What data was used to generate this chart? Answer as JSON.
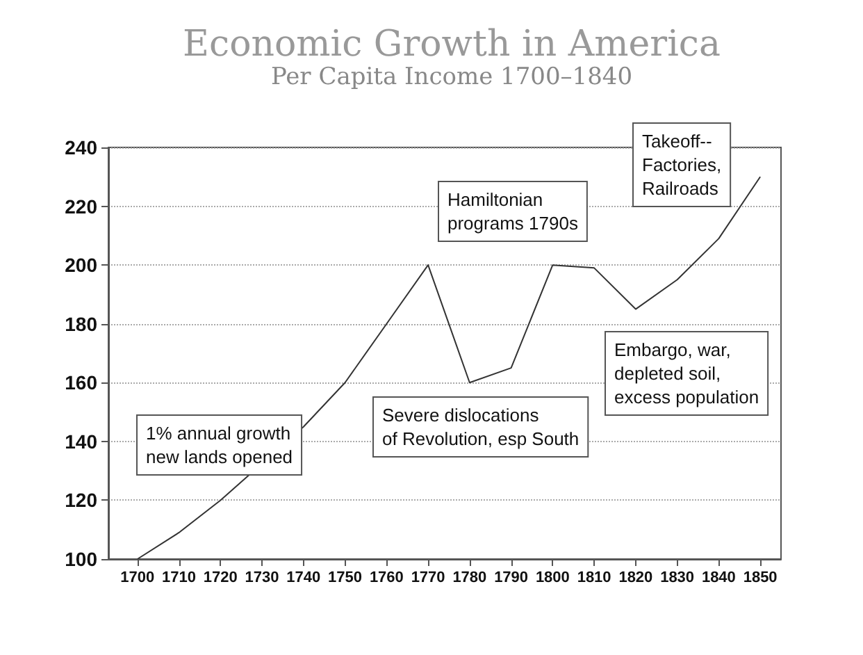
{
  "chart_data": {
    "type": "line",
    "title": "Economic Growth in America",
    "subtitle": "Per Capita Income 1700–1840",
    "x": [
      1700,
      1710,
      1720,
      1730,
      1740,
      1750,
      1760,
      1770,
      1780,
      1790,
      1800,
      1810,
      1820,
      1830,
      1840,
      1850
    ],
    "series": [
      {
        "color": "#333333",
        "values": [
          100,
          109,
          120,
          null,
          145,
          160,
          180,
          200,
          160,
          165,
          200,
          199,
          185,
          195,
          209,
          230
        ]
      }
    ],
    "xlim": [
      1693,
      1855
    ],
    "xticks": [
      1700,
      1710,
      1720,
      1730,
      1740,
      1750,
      1760,
      1770,
      1780,
      1790,
      1800,
      1810,
      1820,
      1830,
      1840,
      1850
    ],
    "ylim": [
      100,
      240
    ],
    "yticks": [
      100,
      120,
      140,
      160,
      180,
      200,
      220,
      240
    ],
    "grid": "y",
    "marker": "none",
    "line_style": "solid",
    "annotations": [
      "1% annual growth\nnew lands opened",
      "Severe dislocations\nof Revolution, esp South",
      "Hamiltonian\nprograms 1790s",
      "Embargo, war,\ndepleted soil,\nexcess population",
      "Takeoff--\nFactories,\nRailroads"
    ]
  }
}
